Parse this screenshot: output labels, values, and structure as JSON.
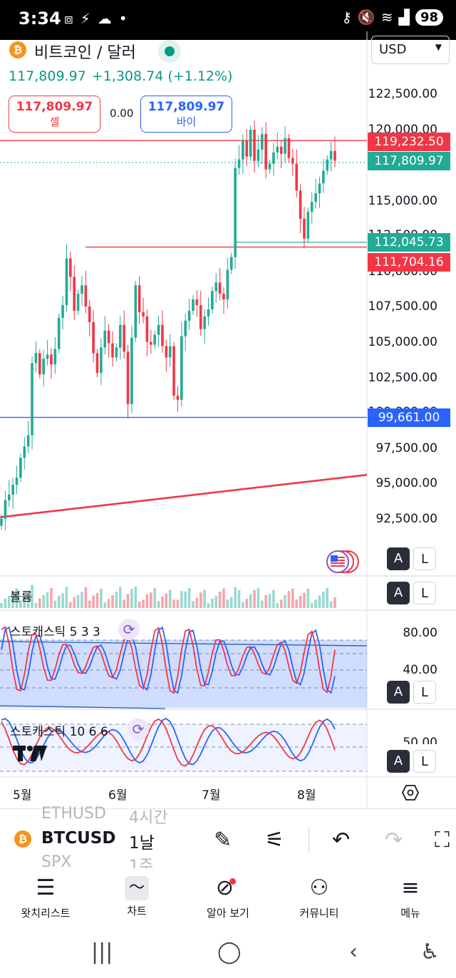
{
  "status_bar": {
    "time": "3:34",
    "battery": "98",
    "icons": [
      "screenshot-icon",
      "runner-icon",
      "cloud-icon",
      "dot-icon",
      "key-icon",
      "mute-icon",
      "wifi-icon",
      "signal-icon"
    ]
  },
  "header": {
    "coin_badge": "₿",
    "title": "비트코인 / 달러",
    "currency": "USD",
    "last_price": "117,809.97",
    "change": "+1,308.74 (+1.12%)"
  },
  "trade": {
    "sell_price": "117,809.97",
    "sell_label": "셀",
    "spread": "0.00",
    "buy_price": "117,809.97",
    "buy_label": "바이"
  },
  "price_axis": {
    "labels": [
      "122,500.00",
      "120,000.00",
      "115,000.00",
      "112,500.00",
      "110,000.00",
      "107,500.00",
      "105,000.00",
      "102,500.00",
      "100,000.00",
      "97,500.00",
      "95,000.00",
      "92,500.00"
    ]
  },
  "price_tags": {
    "red_level": "119,232.50",
    "current": "117,809.97",
    "green_level": "112,045.73",
    "red_level_2": "111,704.16",
    "blue_level": "99,661.00"
  },
  "panes": {
    "volume_label": "볼륨",
    "stoch1_label": "스토캐스틱 5 3 3",
    "stoch1_levels": [
      "80.00",
      "40.00"
    ],
    "stoch2_label": "스토캐스틱 10 6 6",
    "stoch2_level": "50.00",
    "btn_auto": "A",
    "btn_log": "L"
  },
  "time_axis": {
    "months": [
      "5월",
      "6월",
      "7월",
      "8월"
    ]
  },
  "toolbar": {
    "symbol_above": "ETHUSD",
    "interval_above": "4시간",
    "symbol": "BTCUSD",
    "interval": "1날",
    "symbol_below": "SPX",
    "interval_below": "1주"
  },
  "bottom_nav": {
    "items": [
      {
        "label": "왓치리스트",
        "icon": "watchlist-icon"
      },
      {
        "label": "차트",
        "icon": "chart-icon"
      },
      {
        "label": "알아 보기",
        "icon": "compass-icon"
      },
      {
        "label": "커뮤니티",
        "icon": "community-icon"
      },
      {
        "label": "메뉴",
        "icon": "menu-icon"
      }
    ]
  },
  "colors": {
    "up": "#22ab94",
    "down": "#f23645",
    "blue": "#2962ff",
    "stoch_k": "#2962ff",
    "stoch_d": "#f23645"
  },
  "chart_data": {
    "type": "candlestick",
    "symbol": "BTCUSD",
    "interval": "1D",
    "ylim": [
      91000,
      123500
    ],
    "x_ticks": [
      "5월",
      "6월",
      "7월",
      "8월"
    ],
    "horizontal_levels": [
      119232.5,
      112045.73,
      111704.16,
      99661.0
    ],
    "trendline": [
      [
        92600,
        95600
      ]
    ],
    "closes": [
      92500,
      93800,
      94200,
      94900,
      95400,
      96800,
      97600,
      98400,
      103500,
      104200,
      102700,
      103800,
      104100,
      103400,
      104500,
      106700,
      107600,
      110900,
      109600,
      107200,
      108400,
      109000,
      107500,
      106400,
      104200,
      102800,
      104600,
      105800,
      104900,
      103900,
      104600,
      106200,
      104300,
      100600,
      105300,
      109000,
      107100,
      106800,
      105000,
      104800,
      105500,
      106200,
      104700,
      103900,
      104700,
      101200,
      100900,
      105400,
      106500,
      107200,
      108000,
      107600,
      105900,
      106800,
      107300,
      108600,
      109200,
      108400,
      108000,
      110100,
      111000,
      117300,
      117900,
      119200,
      118100,
      120000,
      117800,
      118600,
      119700,
      117200,
      117600,
      118400,
      118800,
      118300,
      119400,
      118000,
      117600,
      115700,
      113700,
      112300,
      114200,
      114900,
      115500,
      116200,
      117100,
      117900,
      118500,
      117810
    ]
  }
}
